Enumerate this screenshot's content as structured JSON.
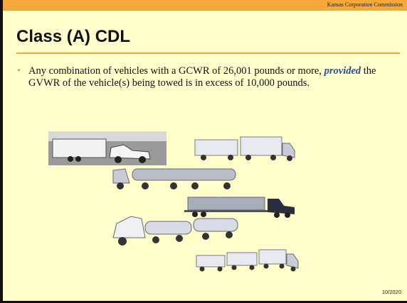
{
  "header": {
    "organization": "Kansas Corporation Commission"
  },
  "slide": {
    "title": "Class (A) CDL",
    "bullet": {
      "before": "Any combination of vehicles with a GCWR of 26,001 pounds or more, ",
      "emphasis": "provided",
      "after": " the GVWR of the vehicle(s) being towed is in excess of 10,000 pounds."
    }
  },
  "footer": {
    "date": "10/2020"
  }
}
